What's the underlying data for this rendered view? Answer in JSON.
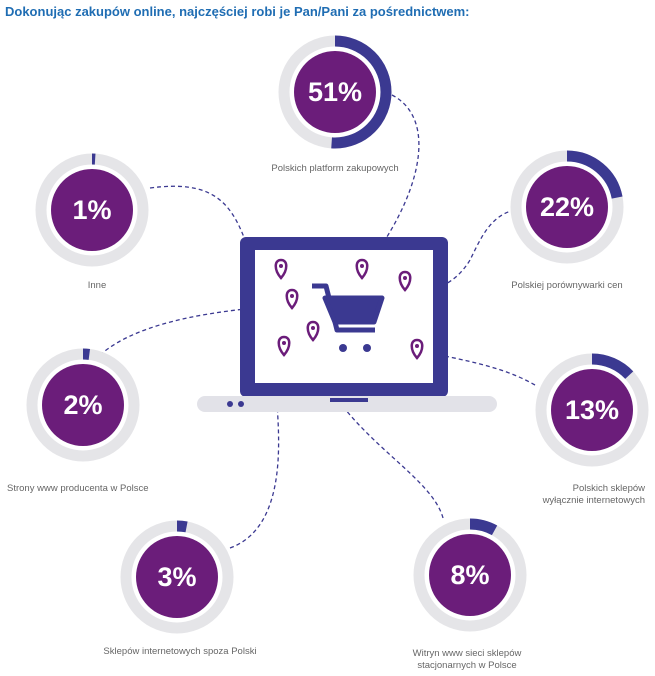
{
  "title": "Dokonując zakupów online, najczęściej robi je Pan/Pani za pośrednictwem:",
  "colors": {
    "title": "#1f6db3",
    "fill": "#6b1d7a",
    "ring": "#3b3991",
    "track": "#e5e5e8",
    "laptop": "#3b3991"
  },
  "items": [
    {
      "value": "51%",
      "pct": 51,
      "label": "Polskich platform zakupowych"
    },
    {
      "value": "1%",
      "pct": 1,
      "label": "Inne"
    },
    {
      "value": "22%",
      "pct": 22,
      "label": "Polskiej porównywarki cen"
    },
    {
      "value": "2%",
      "pct": 2,
      "label": "Strony www producenta w Polsce"
    },
    {
      "value": "13%",
      "pct": 13,
      "label": "Polskich sklepów",
      "label2": "wyłącznie internetowych"
    },
    {
      "value": "3%",
      "pct": 3,
      "label": "Sklepów internetowych spoza Polski"
    },
    {
      "value": "8%",
      "pct": 8,
      "label": "Witryn www sieci sklepów",
      "label2": "stacjonarnych w Polsce"
    }
  ]
}
